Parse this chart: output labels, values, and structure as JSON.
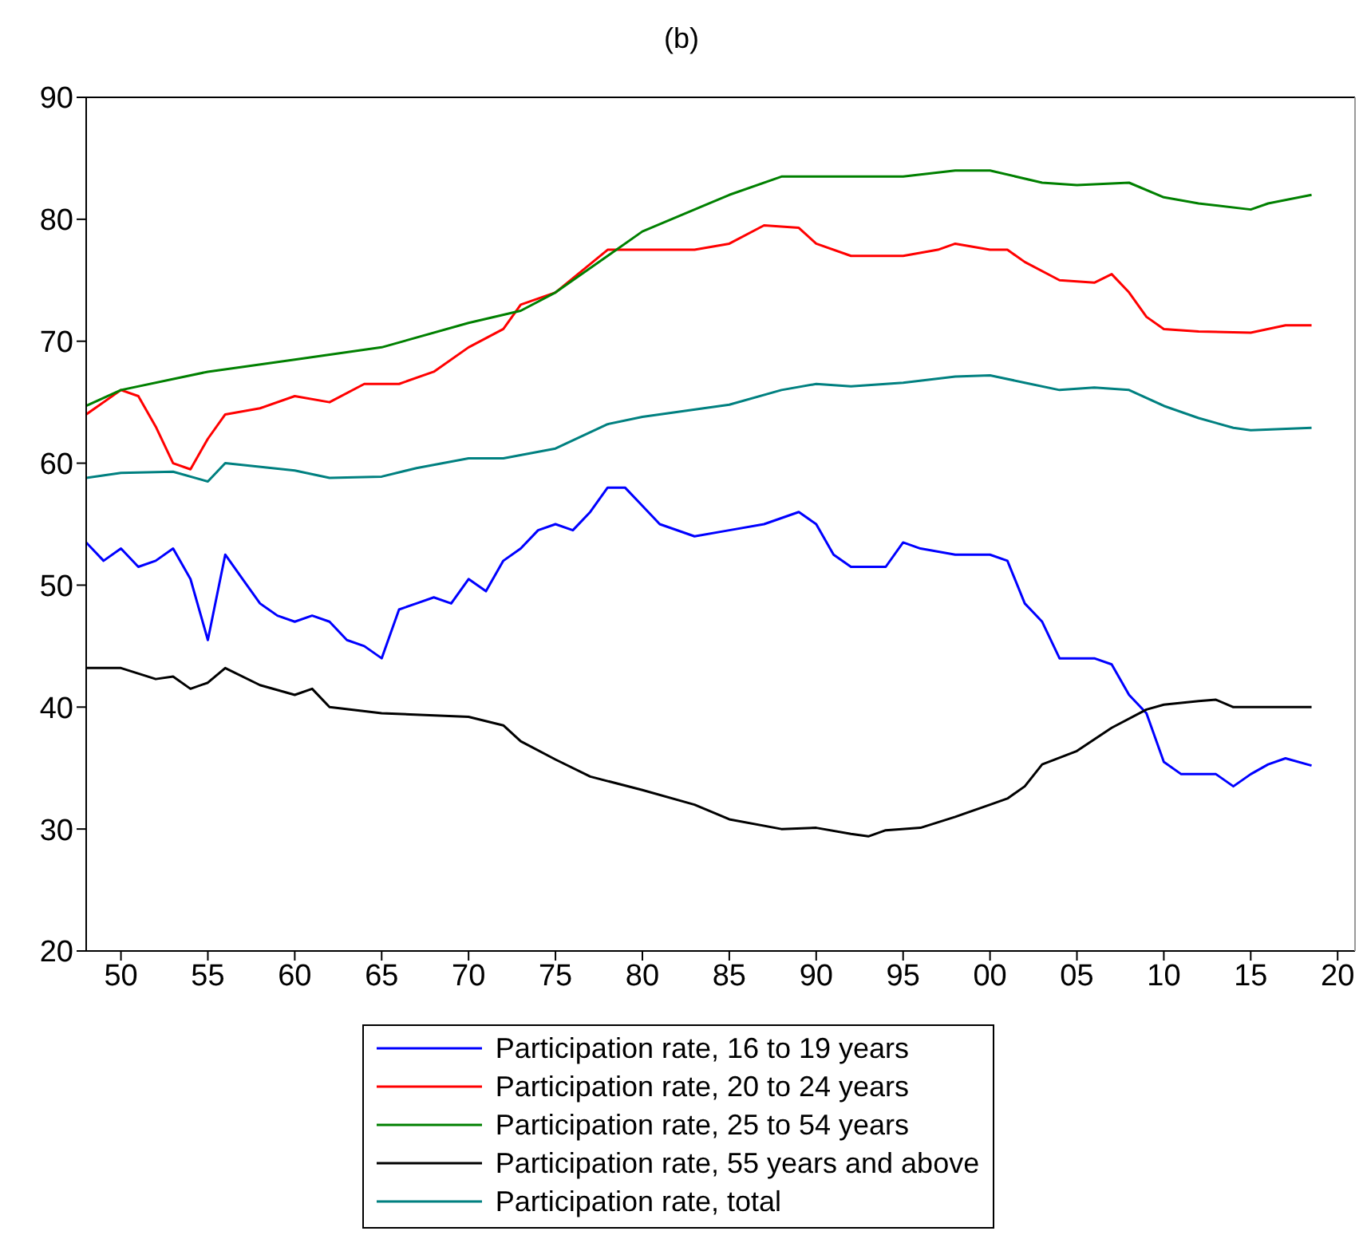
{
  "chart_data": {
    "type": "line",
    "title": "(b)",
    "xlim": [
      1948,
      2021
    ],
    "ylim": [
      20,
      90
    ],
    "xticks": [
      {
        "value": 1950,
        "label": "50"
      },
      {
        "value": 1955,
        "label": "55"
      },
      {
        "value": 1960,
        "label": "60"
      },
      {
        "value": 1965,
        "label": "65"
      },
      {
        "value": 1970,
        "label": "70"
      },
      {
        "value": 1975,
        "label": "75"
      },
      {
        "value": 1980,
        "label": "80"
      },
      {
        "value": 1985,
        "label": "85"
      },
      {
        "value": 1990,
        "label": "90"
      },
      {
        "value": 1995,
        "label": "95"
      },
      {
        "value": 2000,
        "label": "00"
      },
      {
        "value": 2005,
        "label": "05"
      },
      {
        "value": 2010,
        "label": "10"
      },
      {
        "value": 2015,
        "label": "15"
      },
      {
        "value": 2020,
        "label": "20"
      }
    ],
    "yticks": [
      20,
      30,
      40,
      50,
      60,
      70,
      80,
      90
    ],
    "legend": "bottom",
    "marker": "none",
    "line_style": "solid",
    "series": [
      {
        "name": "Participation rate, 16 to 19 years",
        "color": "#0000ff",
        "x": [
          1948,
          1949,
          1950,
          1951,
          1952,
          1953,
          1954,
          1955,
          1956,
          1957,
          1958,
          1959,
          1960,
          1961,
          1962,
          1963,
          1964,
          1965,
          1966,
          1967,
          1968,
          1969,
          1970,
          1971,
          1972,
          1973,
          1974,
          1975,
          1976,
          1977,
          1978,
          1979,
          1980,
          1981,
          1983,
          1985,
          1987,
          1989,
          1990,
          1991,
          1992,
          1994,
          1995,
          1996,
          1998,
          2000,
          2001,
          2002,
          2003,
          2004,
          2006,
          2007,
          2008,
          2009,
          2010,
          2011,
          2012,
          2013,
          2014,
          2015,
          2016,
          2017,
          2018.5
        ],
        "values": [
          53.5,
          52,
          53,
          51.5,
          52,
          53,
          50.5,
          45.5,
          52.5,
          50.5,
          48.5,
          47.5,
          47,
          47.5,
          47,
          45.5,
          45,
          44,
          48,
          48.5,
          49,
          48.5,
          50.5,
          49.5,
          52,
          53,
          54.5,
          55,
          54.5,
          56,
          58,
          58,
          56.5,
          55,
          54,
          54.5,
          55,
          56,
          55,
          52.5,
          51.5,
          51.5,
          53.5,
          53,
          52.5,
          52.5,
          52,
          48.5,
          47,
          44,
          44,
          43.5,
          41,
          39.5,
          35.5,
          34.5,
          34.5,
          34.5,
          33.5,
          34.5,
          35.3,
          35.8,
          35.2
        ]
      },
      {
        "name": "Participation rate, 20 to 24 years",
        "color": "#ff0000",
        "x": [
          1948,
          1950,
          1951,
          1952,
          1953,
          1954,
          1955,
          1956,
          1958,
          1960,
          1962,
          1964,
          1966,
          1968,
          1970,
          1972,
          1973,
          1975,
          1978,
          1980,
          1983,
          1985,
          1987,
          1989,
          1990,
          1992,
          1995,
          1997,
          1998,
          2000,
          2001,
          2002,
          2004,
          2006,
          2007,
          2008,
          2009,
          2010,
          2012,
          2015,
          2017,
          2018.5
        ],
        "values": [
          64,
          66,
          65.5,
          63,
          60,
          59.5,
          62,
          64,
          64.5,
          65.5,
          65,
          66.5,
          66.5,
          67.5,
          69.5,
          71,
          73,
          74,
          77.5,
          77.5,
          77.5,
          78,
          79.5,
          79.3,
          78,
          77,
          77,
          77.5,
          78,
          77.5,
          77.5,
          76.5,
          75,
          74.8,
          75.5,
          74,
          72,
          71,
          70.8,
          70.7,
          71.3,
          71.3
        ]
      },
      {
        "name": "Participation rate, 25 to 54 years",
        "color": "#008000",
        "x": [
          1948,
          1950,
          1955,
          1960,
          1965,
          1970,
          1973,
          1975,
          1978,
          1980,
          1985,
          1988,
          1990,
          1995,
          1998,
          2000,
          2003,
          2005,
          2008,
          2010,
          2012,
          2015,
          2016,
          2018.5
        ],
        "values": [
          64.7,
          66,
          67.5,
          68.5,
          69.5,
          71.5,
          72.5,
          74,
          77,
          79,
          82,
          83.5,
          83.5,
          83.5,
          84,
          84,
          83,
          82.8,
          83,
          81.8,
          81.3,
          80.8,
          81.3,
          82
        ]
      },
      {
        "name": "Participation rate, 55 years and above",
        "color": "#000000",
        "x": [
          1948,
          1950,
          1952,
          1953,
          1954,
          1955,
          1956,
          1958,
          1960,
          1961,
          1962,
          1965,
          1970,
          1972,
          1973,
          1975,
          1977,
          1980,
          1983,
          1985,
          1988,
          1990,
          1992,
          1993,
          1994,
          1996,
          1998,
          2000,
          2001,
          2002,
          2003,
          2005,
          2007,
          2009,
          2010,
          2012,
          2013,
          2014,
          2016,
          2018.5
        ],
        "values": [
          43.2,
          43.2,
          42.3,
          42.5,
          41.5,
          42,
          43.2,
          41.8,
          41,
          41.5,
          40,
          39.5,
          39.2,
          38.5,
          37.2,
          35.7,
          34.3,
          33.2,
          32,
          30.8,
          30,
          30.1,
          29.6,
          29.4,
          29.9,
          30.1,
          31,
          32,
          32.5,
          33.5,
          35.3,
          36.4,
          38.3,
          39.8,
          40.2,
          40.5,
          40.6,
          40,
          40,
          40
        ]
      },
      {
        "name": "Participation rate, total",
        "color": "#008080",
        "x": [
          1948,
          1950,
          1953,
          1955,
          1956,
          1960,
          1962,
          1965,
          1967,
          1970,
          1972,
          1975,
          1978,
          1980,
          1985,
          1988,
          1990,
          1992,
          1995,
          1998,
          2000,
          2002,
          2004,
          2006,
          2008,
          2010,
          2012,
          2014,
          2015,
          2018.5
        ],
        "values": [
          58.8,
          59.2,
          59.3,
          58.5,
          60,
          59.4,
          58.8,
          58.9,
          59.6,
          60.4,
          60.4,
          61.2,
          63.2,
          63.8,
          64.8,
          66,
          66.5,
          66.3,
          66.6,
          67.1,
          67.2,
          66.6,
          66,
          66.2,
          66,
          64.7,
          63.7,
          62.9,
          62.7,
          62.9
        ]
      }
    ]
  }
}
